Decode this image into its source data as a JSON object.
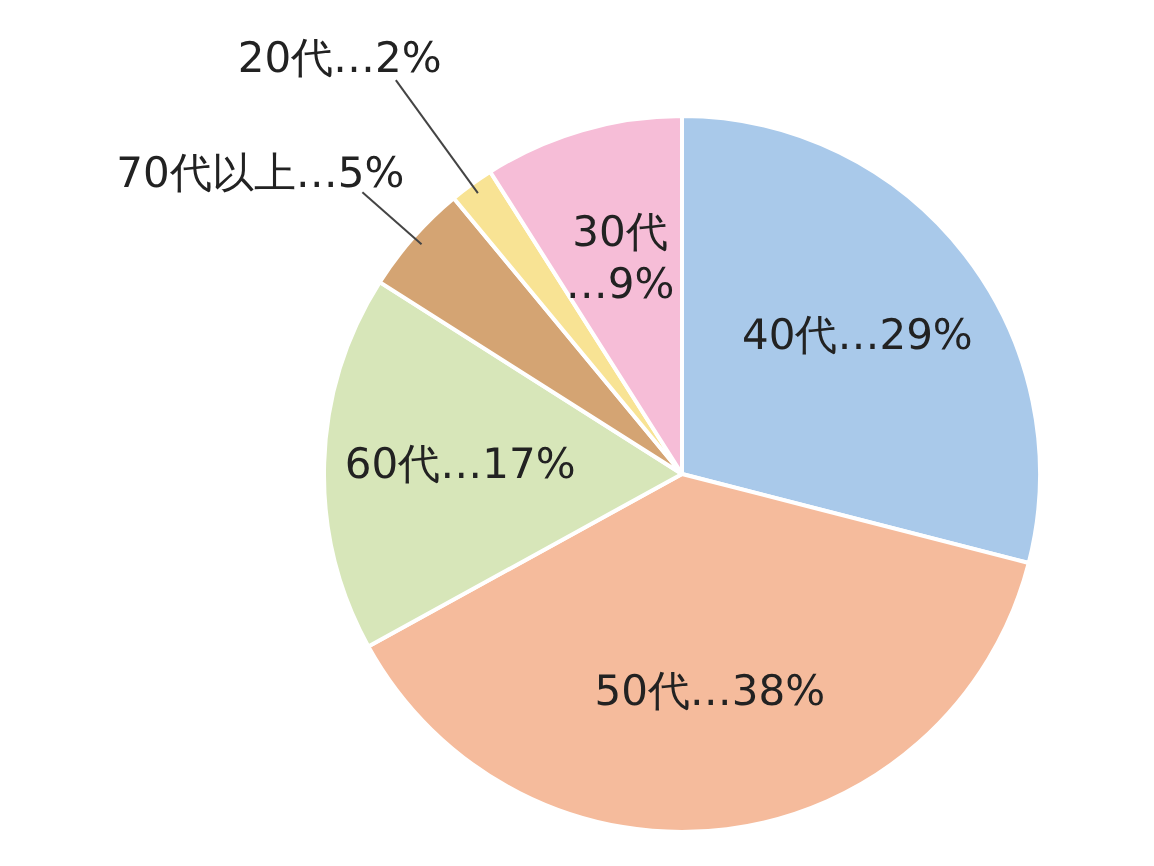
{
  "chart_data": {
    "type": "pie",
    "categories": [
      "40代",
      "50代",
      "60代",
      "70代以上",
      "20代",
      "30代"
    ],
    "values": [
      29,
      38,
      17,
      5,
      2,
      9
    ],
    "colors": [
      "#a9c9ea",
      "#f5bb9c",
      "#d7e6b9",
      "#d4a473",
      "#f8e394",
      "#f6bdd7"
    ],
    "value_labels": [
      "…29%",
      "…38%",
      "…17%",
      "…5%",
      "…2%",
      "…9%"
    ]
  }
}
